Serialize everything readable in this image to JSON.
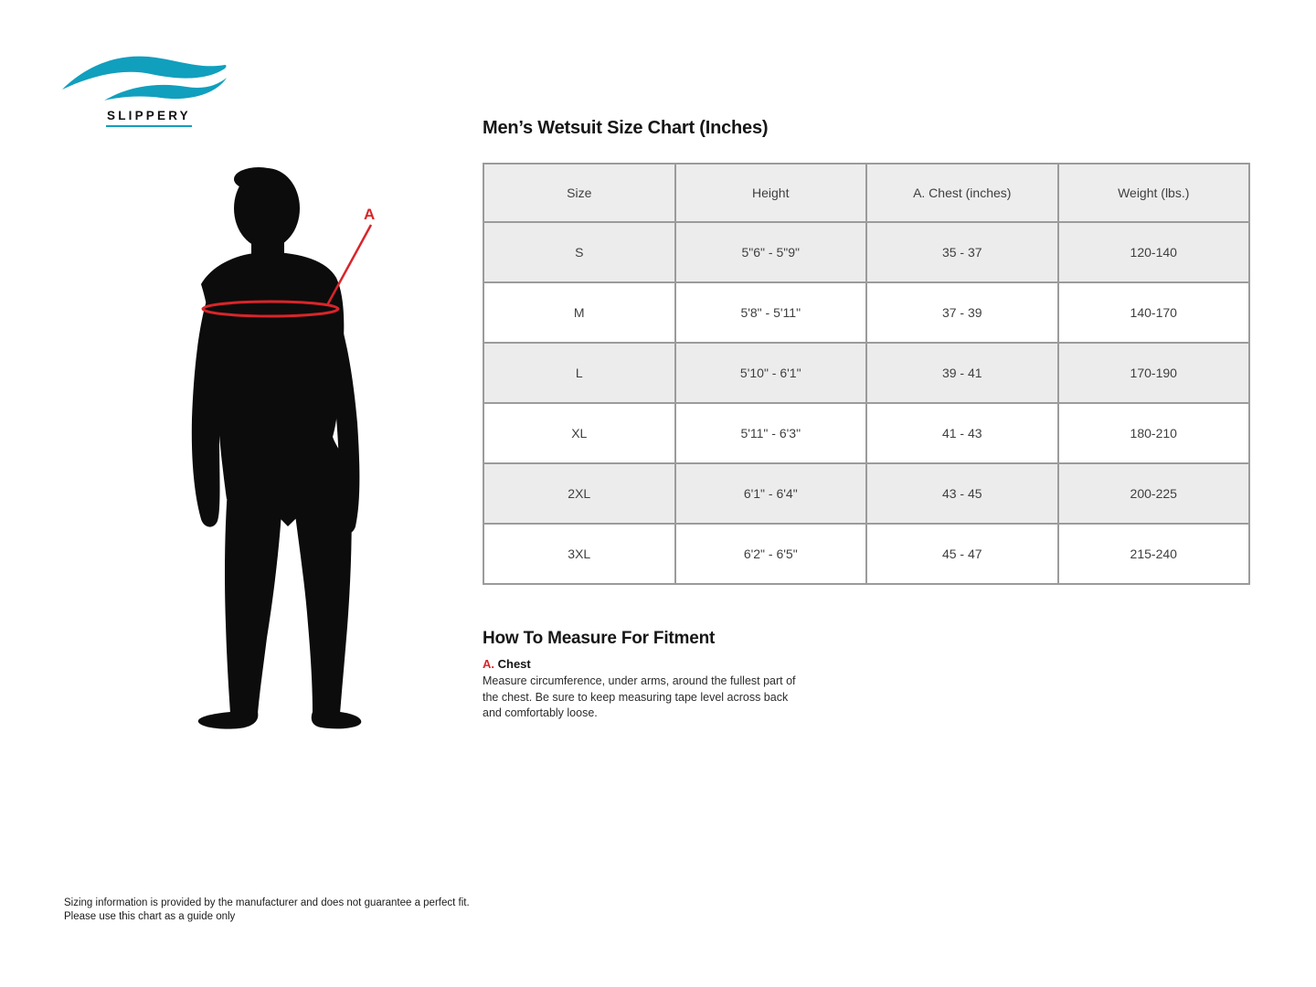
{
  "brand": {
    "name": "SLIPPERY",
    "wave_color": "#119fbe",
    "text_color": "#121212"
  },
  "figure": {
    "label": "A",
    "annotation_color": "#d9252a",
    "silhouette_color": "#0c0c0c"
  },
  "size_chart": {
    "title": "Men’s Wetsuit Size Chart (Inches)",
    "columns": [
      "Size",
      "Height",
      "A. Chest (inches)",
      "Weight (lbs.)"
    ],
    "rows": [
      {
        "size": "S",
        "height": "5\"6\" - 5\"9\"",
        "chest": "35 - 37",
        "weight": "120-140"
      },
      {
        "size": "M",
        "height": "5'8\" - 5'11\"",
        "chest": "37 - 39",
        "weight": "140-170"
      },
      {
        "size": "L",
        "height": "5'10\" - 6'1\"",
        "chest": "39 - 41",
        "weight": "170-190"
      },
      {
        "size": "XL",
        "height": "5'11\" - 6'3\"",
        "chest": "41 - 43",
        "weight": "180-210"
      },
      {
        "size": "2XL",
        "height": "6'1\" - 6'4\"",
        "chest": "43 - 45",
        "weight": "200-225"
      },
      {
        "size": "3XL",
        "height": "6'2\" - 6'5\"",
        "chest": "45 - 47",
        "weight": "215-240"
      }
    ],
    "header_bg": "#ededed",
    "alt_row_bg": "#ececec",
    "border_color": "#9b9b9b"
  },
  "measure_section": {
    "heading": "How To Measure For Fitment",
    "item_key": "A.",
    "item_name": "Chest",
    "item_description": "Measure circumference, under arms, around the fullest part of the chest. Be sure to keep measuring tape level across back and comfortably loose."
  },
  "footer": {
    "line1": "Sizing information is provided by the manufacturer and does not guarantee a perfect fit.",
    "line2": "Please use this chart as a guide only"
  }
}
